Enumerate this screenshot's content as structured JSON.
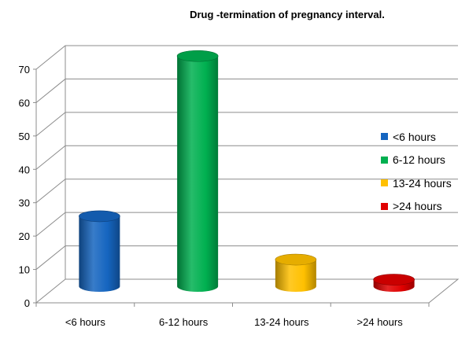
{
  "chart_data": {
    "type": "bar",
    "title": "Drug -termination of pregnancy interval.",
    "categories": [
      "<6 hours",
      "6-12 hours",
      "13-24 hours",
      ">24 hours"
    ],
    "values": [
      21,
      69,
      8,
      2
    ],
    "ylim": [
      0,
      70
    ],
    "yticks": [
      0,
      10,
      20,
      30,
      40,
      50,
      60,
      70
    ],
    "grid": true,
    "legend_position": "right",
    "colors": [
      "#1565c0",
      "#00b050",
      "#ffc000",
      "#e00000"
    ],
    "legend": [
      {
        "label": "<6 hours",
        "color": "#1565c0"
      },
      {
        "label": "6-12 hours",
        "color": "#00b050"
      },
      {
        "label": "13-24 hours",
        "color": "#ffc000"
      },
      {
        "label": ">24 hours",
        "color": "#e00000"
      }
    ]
  }
}
